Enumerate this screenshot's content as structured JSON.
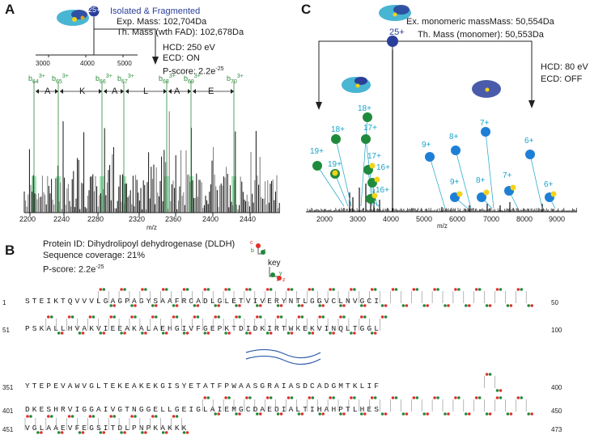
{
  "panelA": {
    "letter": "A",
    "charge": "25+",
    "status": "Isolated & Fragmented",
    "exp_mass": "Exp. Mass: 102,704Da",
    "th_mass": "Th. Mass (wth FAD): 102,678Da",
    "hcd": "HCD: 250 eV",
    "ecd": "ECD: ON",
    "pscore": "P-score: 2.2e",
    "pscore_exp": "-25",
    "inset_ticks": [
      "3000",
      "4000",
      "5000"
    ],
    "ions": [
      {
        "name": "b",
        "sub": "64",
        "sup": "3+"
      },
      {
        "name": "b",
        "sub": "65",
        "sup": "3+"
      },
      {
        "name": "b",
        "sub": "66",
        "sup": "3+"
      },
      {
        "name": "b",
        "sub": "67",
        "sup": "3+"
      },
      {
        "name": "b",
        "sub": "68",
        "sup": "3+"
      },
      {
        "name": "b",
        "sub": "69",
        "sup": "3+"
      },
      {
        "name": "b",
        "sub": "70",
        "sup": "3+"
      }
    ],
    "residues": [
      "A",
      "K",
      "A",
      "L",
      "A",
      "E"
    ],
    "xticks": [
      "2200",
      "2240",
      "2280",
      "2320",
      "2360",
      "2400",
      "2440"
    ],
    "xlabel": "m/z"
  },
  "panelC": {
    "letter": "C",
    "charge": "25+",
    "mono_mass": "Ex. monomeric massMass: 50,554Da",
    "th_mass": "Th. Mass (monomer): 50,553Da",
    "hcd": "HCD: 80 eV",
    "ecd": "ECD: OFF",
    "green_labels": [
      "18+",
      "18+",
      "17+",
      "19+",
      "19+",
      "17+",
      "16+",
      "16+"
    ],
    "blue_labels": [
      "7+",
      "8+",
      "9+",
      "6+",
      "9+",
      "8+",
      "7+",
      "6+"
    ],
    "xticks": [
      "2000",
      "3000",
      "4000",
      "5000",
      "6000",
      "7000",
      "8000",
      "9000"
    ],
    "xlabel": "m/z"
  },
  "panelB": {
    "letter": "B",
    "protein_id": "Protein ID: Dihydrolipoyl dehydrogenase (DLDH)",
    "coverage": "Sequence coverage: 21%",
    "pscore": "P-score: 2.2e",
    "pscore_exp": "-25",
    "key_label": "key",
    "key_c": "c",
    "key_b": "b",
    "key_y": "y",
    "key_z": "z",
    "rows": [
      {
        "start": "1",
        "seq": "STEIKTQVVVLGAGPAGYSAAFRCADLGLETVIVERYNTLGGVCLNVGCI",
        "end": "50"
      },
      {
        "start": "51",
        "seq": "PSKALLHVAKVIEEAKALAEHGIVFGEPKTDIDKIRTWKEKVINQLTGGL",
        "end": "100"
      },
      {
        "start": "351",
        "seq": "YTEPEVAWVGLTEKEAKEKGISYETATFPWAASGRAIASDCADGMTKLIF",
        "end": "400"
      },
      {
        "start": "401",
        "seq": "DKESHRVIGGAIVGTNGGELLGEIGLAIEMGCDAEDIALTIHAHPTLHES",
        "end": "450"
      },
      {
        "start": "451",
        "seq": "VGLAAEVFEGSITDLPNPKAKKK",
        "end": "473"
      }
    ]
  },
  "colors": {
    "navy": "#2a3f9a",
    "green": "#1f8a3c",
    "blue": "#1e7fd6",
    "teal": "#1aa3c8",
    "yellow": "#f5d21a",
    "red": "#e0302a",
    "hl": "#5fcf80"
  }
}
